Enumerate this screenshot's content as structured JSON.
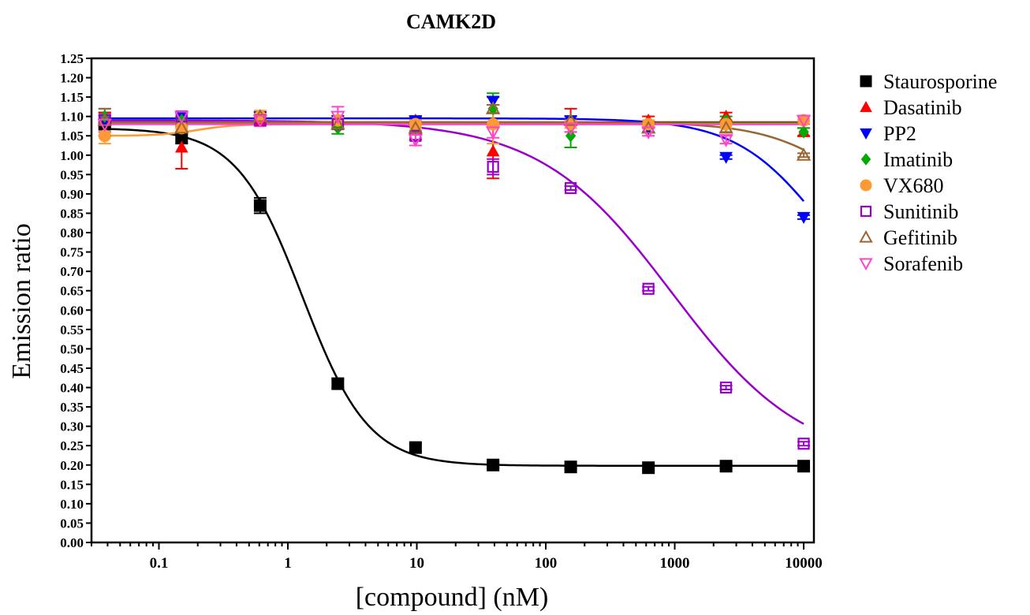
{
  "chart_data": {
    "type": "scatter",
    "title": "CAMK2D",
    "xlabel": "[compound] (nM)",
    "ylabel": "Emission ratio",
    "xscale": "log",
    "xlim": [
      0.03,
      12000
    ],
    "ylim": [
      0,
      1.25
    ],
    "ytick_step": 0.05,
    "xticks": [
      {
        "value": 0.1,
        "label": "0.1"
      },
      {
        "value": 1,
        "label": "1"
      },
      {
        "value": 10,
        "label": "10"
      },
      {
        "value": 100,
        "label": "100"
      },
      {
        "value": 1000,
        "label": "1000"
      },
      {
        "value": 10000,
        "label": "10000"
      }
    ],
    "yticks": [
      "0.00",
      "0.05",
      "0.10",
      "0.15",
      "0.20",
      "0.25",
      "0.30",
      "0.35",
      "0.40",
      "0.45",
      "0.50",
      "0.55",
      "0.60",
      "0.65",
      "0.70",
      "0.75",
      "0.80",
      "0.85",
      "0.90",
      "0.95",
      "1.00",
      "1.05",
      "1.10",
      "1.15",
      "1.20",
      "1.25"
    ],
    "legend_position": "right",
    "x": [
      0.038,
      0.15,
      0.61,
      2.44,
      9.77,
      39,
      156,
      625,
      2500,
      10000
    ],
    "series": [
      {
        "name": "Staurosporine",
        "color": "#000000",
        "marker": "square-filled",
        "values": [
          1.08,
          1.045,
          0.87,
          0.41,
          0.245,
          0.2,
          0.195,
          0.193,
          0.197,
          0.197
        ],
        "errors": [
          0.03,
          0.015,
          0.02,
          0.012,
          0.01,
          0.008,
          0.005,
          0.005,
          0.005,
          0.005
        ],
        "fit": {
          "top": 1.07,
          "bottom": 0.198,
          "ic50": 1.3,
          "hill": 1.7
        }
      },
      {
        "name": "Dasatinib",
        "color": "#ff0000",
        "marker": "triangle-up-filled",
        "values": [
          1.09,
          1.02,
          1.09,
          1.09,
          1.09,
          1.01,
          1.09,
          1.09,
          1.1,
          1.06
        ],
        "errors": [
          0.02,
          0.055,
          0.01,
          0.01,
          0.01,
          0.07,
          0.03,
          0.01,
          0.01,
          0.01
        ],
        "fit": {
          "top": 1.085,
          "bottom": 1.085,
          "ic50": 1000,
          "hill": 1
        }
      },
      {
        "name": "PP2",
        "color": "#0000ff",
        "marker": "triangle-down-filled",
        "values": [
          1.09,
          1.1,
          1.1,
          1.09,
          1.09,
          1.14,
          1.09,
          1.07,
          0.995,
          0.84
        ],
        "errors": [
          0.01,
          0.01,
          0.01,
          0.01,
          0.01,
          0.01,
          0.01,
          0.01,
          0.005,
          0.005
        ],
        "fit": {
          "top": 1.095,
          "bottom": 0.55,
          "ic50": 14000,
          "hill": 1.3
        }
      },
      {
        "name": "Imatinib",
        "color": "#00aa00",
        "marker": "diamond-filled",
        "values": [
          1.1,
          1.09,
          1.1,
          1.07,
          1.07,
          1.12,
          1.05,
          1.08,
          1.09,
          1.06
        ],
        "errors": [
          0.02,
          0.01,
          0.01,
          0.015,
          0.01,
          0.04,
          0.03,
          0.01,
          0.01,
          0.01
        ],
        "fit": {
          "top": 1.083,
          "bottom": 1.083,
          "ic50": 1000,
          "hill": 1
        }
      },
      {
        "name": "VX680",
        "color": "#ff9933",
        "marker": "circle-filled",
        "values": [
          1.05,
          1.07,
          1.1,
          1.09,
          1.08,
          1.08,
          1.08,
          1.08,
          1.08,
          1.09
        ],
        "errors": [
          0.02,
          0.01,
          0.015,
          0.01,
          0.01,
          0.05,
          0.01,
          0.01,
          0.01,
          0.01
        ],
        "fit": {
          "top": 1.05,
          "bottom": 1.08,
          "ic50": 0.2,
          "hill": 3
        }
      },
      {
        "name": "Sunitinib",
        "color": "#9900cc",
        "marker": "square-open",
        "values": [
          1.09,
          1.1,
          1.09,
          1.08,
          1.05,
          0.97,
          0.915,
          0.655,
          0.4,
          0.255
        ],
        "errors": [
          0.015,
          0.01,
          0.01,
          0.01,
          0.01,
          0.02,
          0.005,
          0.005,
          0.005,
          0.005
        ],
        "fit": {
          "top": 1.09,
          "bottom": 0.2,
          "ic50": 950,
          "hill": 0.85
        }
      },
      {
        "name": "Gefitinib",
        "color": "#996633",
        "marker": "triangle-up-open",
        "values": [
          1.09,
          1.07,
          1.1,
          1.08,
          1.07,
          1.12,
          1.09,
          1.07,
          1.07,
          1.0
        ],
        "errors": [
          0.03,
          0.01,
          0.01,
          0.01,
          0.01,
          0.01,
          0.01,
          0.01,
          0.01,
          0.005
        ],
        "fit": {
          "top": 1.085,
          "bottom": 0.78,
          "ic50": 25000,
          "hill": 1.3
        }
      },
      {
        "name": "Sorafenib",
        "color": "#ff44cc",
        "marker": "triangle-down-open",
        "values": [
          1.08,
          1.1,
          1.09,
          1.1,
          1.04,
          1.06,
          1.07,
          1.06,
          1.04,
          1.09
        ],
        "errors": [
          0.02,
          0.01,
          0.015,
          0.025,
          0.015,
          0.015,
          0.01,
          0.01,
          0.01,
          0.01
        ],
        "fit": {
          "top": 1.08,
          "bottom": 1.08,
          "ic50": 1000,
          "hill": 1
        }
      }
    ]
  }
}
